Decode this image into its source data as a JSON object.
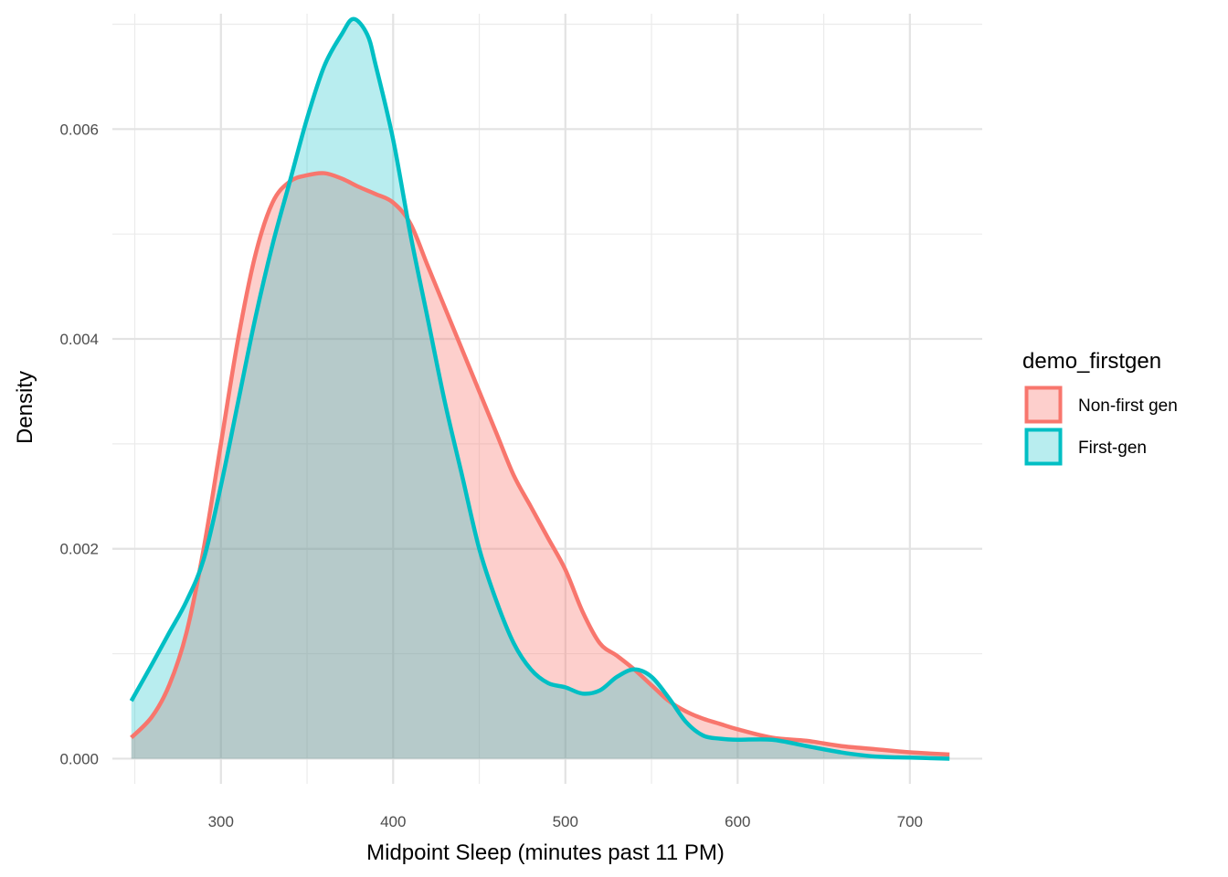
{
  "chart_data": {
    "type": "area",
    "subtype": "density",
    "title": "",
    "xlabel": "Midpoint Sleep (minutes past 11 PM)",
    "ylabel": "Density",
    "xlim": [
      237,
      742
    ],
    "ylim": [
      -0.00024,
      0.0071
    ],
    "x_ticks": [
      300,
      400,
      500,
      600,
      700
    ],
    "x_tick_labels": [
      "300",
      "400",
      "500",
      "600",
      "700"
    ],
    "x_minor_ticks": [
      250,
      350,
      450,
      550,
      650
    ],
    "y_ticks": [
      0.0,
      0.002,
      0.004,
      0.006
    ],
    "y_tick_labels": [
      "0.000",
      "0.002",
      "0.004",
      "0.006"
    ],
    "y_minor_ticks": [
      0.001,
      0.003,
      0.005,
      0.007
    ],
    "grid": true,
    "legend": {
      "title": "demo_firstgen",
      "position": "right"
    },
    "series": [
      {
        "name": "Non-first gen",
        "line_color": "#F8766D",
        "fill_color": "#F8766D",
        "fill_opacity": 0.35,
        "x": [
          248,
          260,
          270,
          280,
          290,
          300,
          310,
          320,
          330,
          340,
          350,
          360,
          370,
          380,
          390,
          400,
          410,
          420,
          430,
          440,
          450,
          460,
          470,
          480,
          490,
          500,
          510,
          520,
          530,
          540,
          550,
          560,
          570,
          580,
          590,
          600,
          620,
          640,
          660,
          680,
          700,
          723
        ],
        "y": [
          0.0002,
          0.0004,
          0.0007,
          0.0012,
          0.002,
          0.003,
          0.004,
          0.0048,
          0.0053,
          0.0055,
          0.00556,
          0.00558,
          0.00553,
          0.00545,
          0.00538,
          0.0053,
          0.0051,
          0.0047,
          0.0043,
          0.0039,
          0.0035,
          0.0031,
          0.0027,
          0.0024,
          0.0021,
          0.0018,
          0.0014,
          0.0011,
          0.00098,
          0.00085,
          0.0007,
          0.00055,
          0.00045,
          0.00038,
          0.00033,
          0.00028,
          0.0002,
          0.00017,
          0.00012,
          9e-05,
          6e-05,
          4e-05
        ]
      },
      {
        "name": "First-gen",
        "line_color": "#00BFC4",
        "fill_color": "#00BFC4",
        "fill_opacity": 0.28,
        "x": [
          248,
          260,
          270,
          280,
          290,
          300,
          310,
          320,
          330,
          340,
          350,
          360,
          370,
          377,
          385,
          390,
          400,
          410,
          420,
          430,
          440,
          450,
          460,
          470,
          480,
          490,
          500,
          510,
          520,
          530,
          540,
          550,
          560,
          570,
          580,
          590,
          600,
          620,
          640,
          660,
          680,
          700,
          723
        ],
        "y": [
          0.00055,
          0.0009,
          0.0012,
          0.0015,
          0.0019,
          0.0026,
          0.0034,
          0.0042,
          0.0049,
          0.0055,
          0.0061,
          0.0066,
          0.0069,
          0.00705,
          0.0069,
          0.0066,
          0.0059,
          0.005,
          0.0042,
          0.0034,
          0.0027,
          0.002,
          0.0015,
          0.0011,
          0.00085,
          0.00072,
          0.00068,
          0.00062,
          0.00065,
          0.00078,
          0.00085,
          0.00078,
          0.00058,
          0.00035,
          0.00022,
          0.00019,
          0.00018,
          0.00018,
          0.00012,
          6e-05,
          2e-05,
          1e-05,
          0.0
        ]
      }
    ]
  }
}
